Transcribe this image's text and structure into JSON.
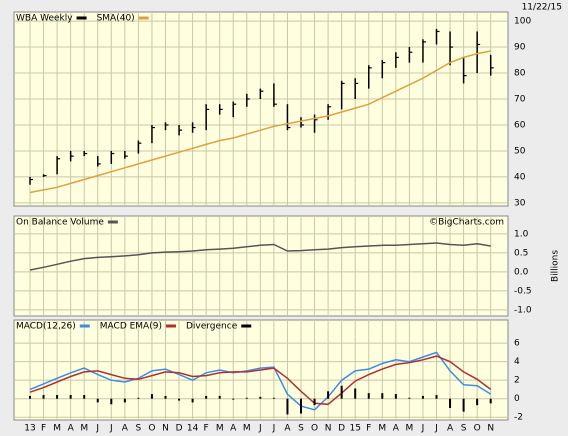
{
  "chart_data": [
    {
      "type": "ohlc",
      "date": "11/22/15",
      "ylim": [
        28.8,
        103.5
      ],
      "yticks": [
        30,
        40,
        50,
        60,
        70,
        80,
        90,
        100
      ],
      "series": [
        {
          "name": "WBA Weekly",
          "color": "#000000",
          "high": [
            40,
            41,
            48,
            50,
            50,
            48,
            50,
            50,
            54,
            60,
            61,
            60,
            61,
            68,
            68,
            69,
            72,
            74,
            76,
            68,
            63,
            64,
            68,
            77,
            78,
            83,
            85,
            88,
            90,
            93,
            97,
            96,
            86,
            96,
            87
          ],
          "low": [
            37,
            40,
            41,
            46,
            48,
            44,
            45,
            47,
            49,
            53,
            58,
            56,
            57,
            58,
            64,
            63,
            67,
            70,
            67,
            58,
            59,
            57,
            62,
            66,
            70,
            74,
            78,
            82,
            84,
            84,
            91,
            83,
            76,
            80,
            79
          ],
          "close": [
            39,
            40.5,
            47,
            48,
            49,
            45,
            49,
            48,
            53,
            59,
            60,
            58,
            59,
            66,
            66,
            68,
            70,
            73,
            68,
            59,
            60,
            62,
            67,
            76,
            76,
            82,
            84,
            86,
            88,
            92,
            96,
            90,
            79,
            91,
            82
          ]
        },
        {
          "name": "SMA(40)",
          "color": "#e0a040",
          "values": [
            34,
            35,
            36,
            37.5,
            39,
            40.5,
            42,
            43.5,
            45,
            46.5,
            48,
            49.5,
            51,
            52.5,
            54,
            55,
            56.5,
            58,
            59.5,
            60.5,
            61.5,
            62.5,
            63.5,
            65,
            66.5,
            68,
            70.5,
            73,
            75.5,
            78,
            81,
            84,
            86,
            87.5,
            88.5
          ]
        }
      ]
    },
    {
      "type": "line",
      "watermark": "©BigCharts.com",
      "ylabel": "Billions",
      "ylim": [
        -1.16,
        1.47
      ],
      "yticks": [
        {
          "value": 1,
          "label": "1.0"
        },
        0.5,
        {
          "value": 0,
          "label": "0.0"
        },
        -0.5,
        {
          "value": -1,
          "label": "-1.0"
        }
      ],
      "series": [
        {
          "name": "On Balance Volume",
          "color": "#555555",
          "values": [
            0.05,
            0.12,
            0.2,
            0.28,
            0.35,
            0.38,
            0.4,
            0.42,
            0.45,
            0.5,
            0.52,
            0.53,
            0.55,
            0.58,
            0.6,
            0.62,
            0.66,
            0.7,
            0.72,
            0.55,
            0.56,
            0.58,
            0.6,
            0.64,
            0.66,
            0.68,
            0.7,
            0.7,
            0.72,
            0.74,
            0.76,
            0.72,
            0.7,
            0.74,
            0.68
          ]
        }
      ]
    },
    {
      "type": "macd",
      "categories": [
        "13",
        "F",
        "M",
        "A",
        "M",
        "J",
        "J",
        "A",
        "S",
        "O",
        "N",
        "D",
        "14",
        "F",
        "M",
        "A",
        "M",
        "J",
        "J",
        "A",
        "S",
        "O",
        "N",
        "D",
        "15",
        "F",
        "M",
        "A",
        "M",
        "J",
        "J",
        "A",
        "S",
        "O",
        "N"
      ],
      "ylim": [
        -2.3,
        8.5
      ],
      "yticks": [
        6,
        4,
        2,
        0,
        -2
      ],
      "series": [
        {
          "name": "MACD(12,26)",
          "color": "#3a8ee6",
          "values": [
            1.0,
            1.6,
            2.2,
            2.8,
            3.3,
            2.6,
            2.0,
            1.8,
            2.2,
            3.0,
            3.2,
            2.6,
            2.0,
            2.8,
            3.1,
            2.8,
            3.0,
            3.3,
            3.4,
            0.5,
            -0.8,
            -1.2,
            0.2,
            2.0,
            3.0,
            3.2,
            3.8,
            4.2,
            4.0,
            4.5,
            5.0,
            3.0,
            1.5,
            1.4,
            0.5
          ]
        },
        {
          "name": "MACD EMA(9)",
          "color": "#b03030",
          "values": [
            0.7,
            1.2,
            1.8,
            2.4,
            2.9,
            3.0,
            2.6,
            2.2,
            2.1,
            2.5,
            2.9,
            2.8,
            2.4,
            2.5,
            2.8,
            2.9,
            2.9,
            3.1,
            3.3,
            2.2,
            0.8,
            -0.5,
            -0.6,
            0.6,
            1.9,
            2.6,
            3.2,
            3.7,
            3.9,
            4.2,
            4.6,
            4.0,
            2.9,
            2.1,
            1.0
          ]
        },
        {
          "name": "Divergence",
          "color": "#000000",
          "values": [
            0.3,
            0.4,
            0.4,
            0.4,
            0.4,
            -0.4,
            -0.6,
            -0.4,
            0.1,
            0.5,
            0.3,
            -0.2,
            -0.4,
            0.3,
            0.3,
            -0.1,
            0.1,
            0.2,
            0.1,
            -1.7,
            -1.6,
            -0.7,
            0.8,
            1.4,
            1.1,
            0.6,
            0.6,
            0.5,
            0.1,
            0.3,
            0.4,
            -1.0,
            -1.4,
            -0.7,
            -0.5
          ]
        }
      ]
    }
  ]
}
